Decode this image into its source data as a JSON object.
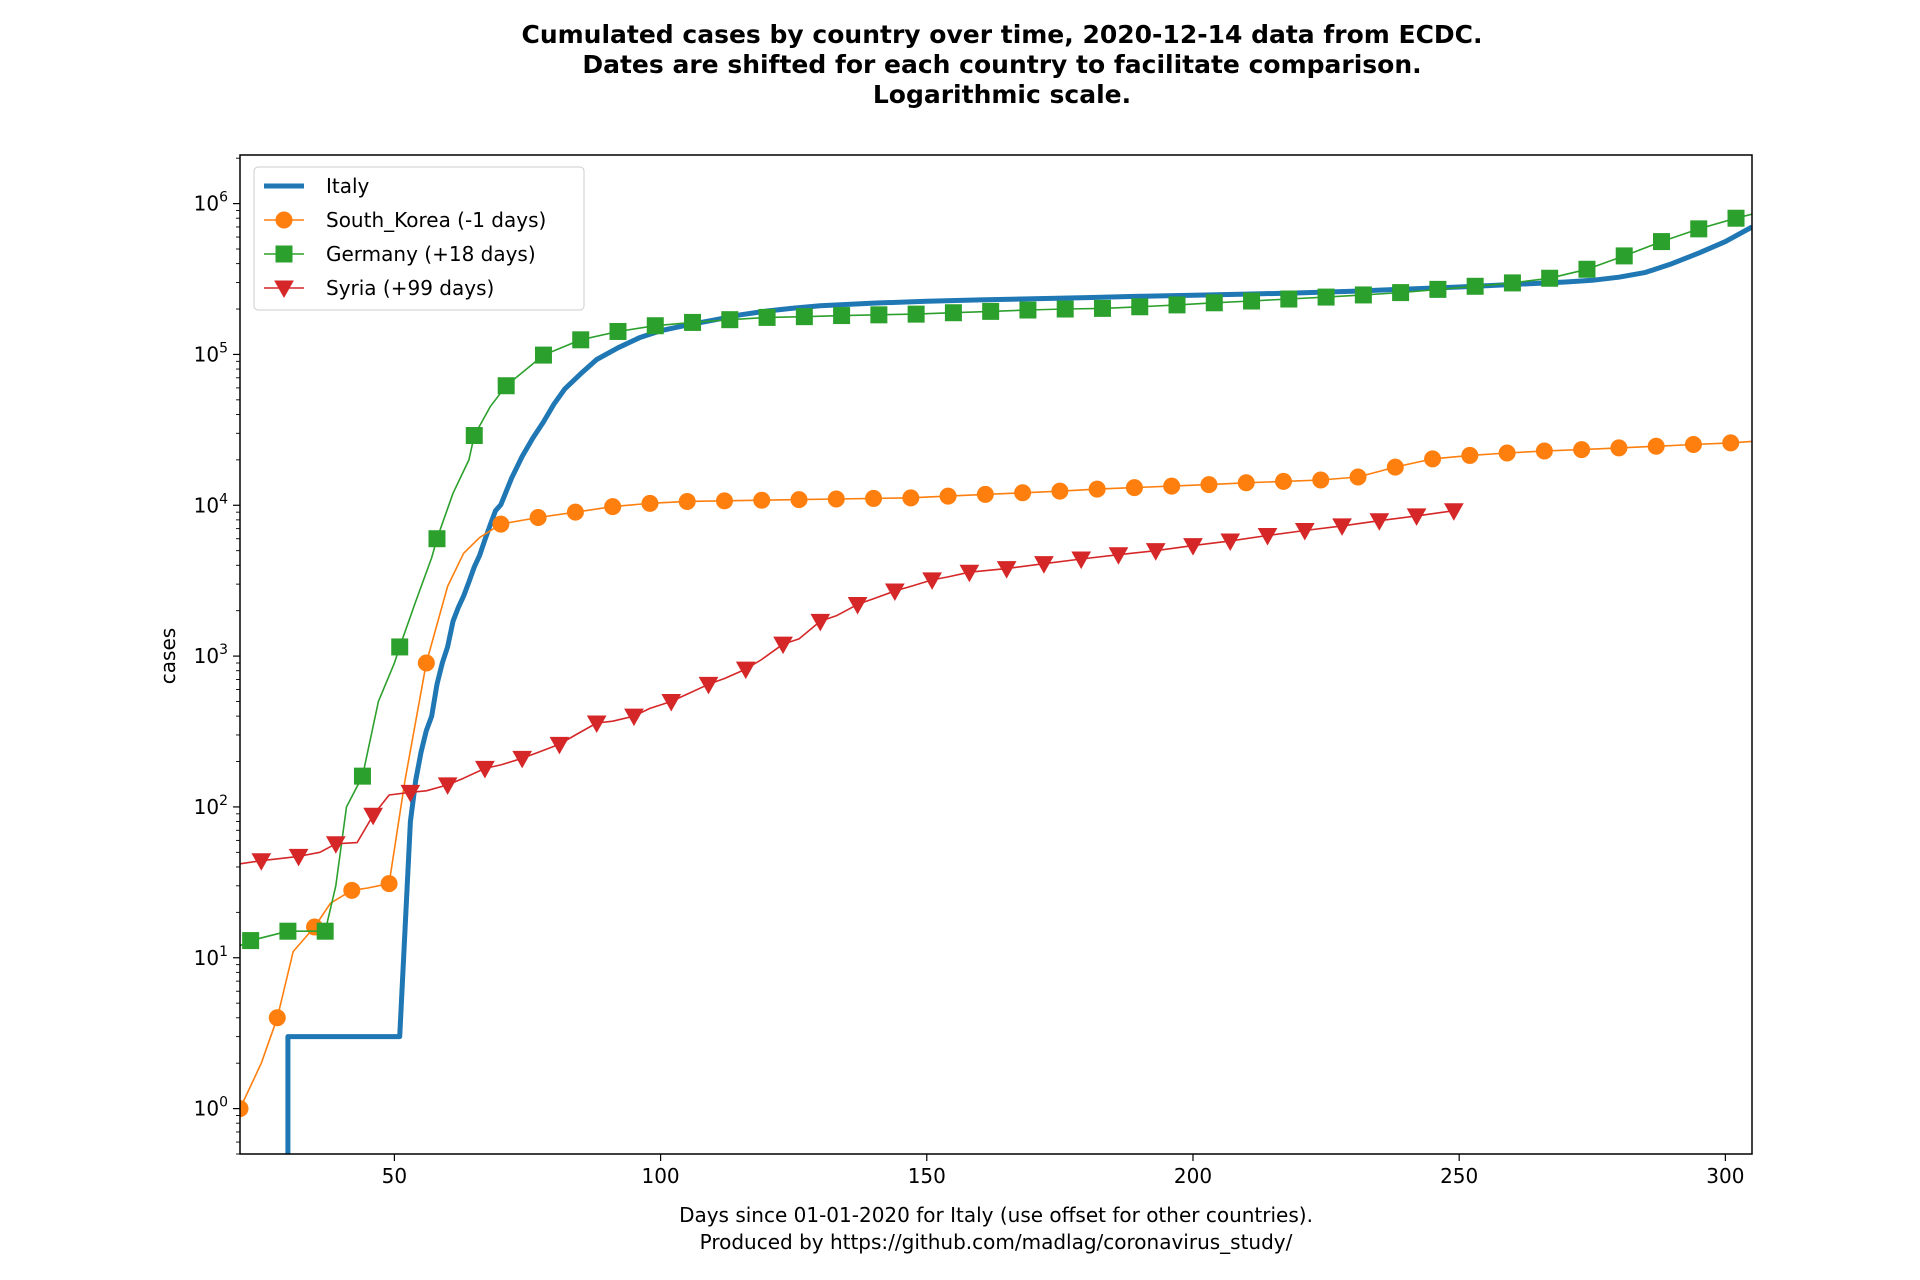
{
  "chart_data": {
    "type": "line",
    "title_lines": [
      "Cumulated cases by country over time, 2020-12-14 data from ECDC.",
      "Dates are shifted for each country to facilitate comparison.",
      "Logarithmic scale."
    ],
    "xlabel_lines": [
      "Days since 01-01-2020 for Italy (use offset for other countries).",
      "Produced by https://github.com/madlag/coronavirus_study/"
    ],
    "ylabel": "cases",
    "y_scale": "log",
    "xlim": [
      21,
      305
    ],
    "ylim": [
      0.5,
      2100000
    ],
    "x_ticks": [
      50,
      100,
      150,
      200,
      250,
      300
    ],
    "y_ticks": [
      {
        "value": 1,
        "base": "10",
        "exp": "0"
      },
      {
        "value": 10,
        "base": "10",
        "exp": "1"
      },
      {
        "value": 100,
        "base": "10",
        "exp": "2"
      },
      {
        "value": 1000,
        "base": "10",
        "exp": "3"
      },
      {
        "value": 10000,
        "base": "10",
        "exp": "4"
      },
      {
        "value": 100000,
        "base": "10",
        "exp": "5"
      },
      {
        "value": 1000000,
        "base": "10",
        "exp": "6"
      }
    ],
    "legend_position": "top-left",
    "grid": false,
    "series": [
      {
        "name": "Italy",
        "color": "#1f77b4",
        "marker": "none",
        "line_width": 5,
        "step": true,
        "x": [
          30,
          30,
          51,
          51,
          53,
          54,
          55,
          56,
          57,
          58,
          59,
          60,
          61,
          62,
          63,
          64,
          65,
          66,
          67,
          68,
          69,
          70,
          72,
          74,
          76,
          78,
          80,
          82,
          85,
          88,
          92,
          96,
          100,
          105,
          110,
          115,
          120,
          125,
          130,
          140,
          150,
          160,
          170,
          180,
          190,
          200,
          210,
          220,
          230,
          240,
          250,
          260,
          270,
          275,
          280,
          285,
          290,
          295,
          300,
          305
        ],
        "y": [
          0.5,
          3,
          3,
          3,
          80,
          150,
          230,
          320,
          400,
          650,
          900,
          1150,
          1700,
          2100,
          2500,
          3100,
          3900,
          4650,
          5900,
          7400,
          9200,
          10100,
          15100,
          21100,
          27900,
          35700,
          47000,
          59100,
          74400,
          92500,
          110600,
          128900,
          143600,
          156400,
          168900,
          183000,
          194000,
          203000,
          210000,
          219000,
          225000,
          230000,
          234000,
          238000,
          243000,
          247000,
          251000,
          256000,
          262000,
          271000,
          280000,
          291000,
          302000,
          310000,
          325000,
          350000,
          400000,
          470000,
          560000,
          700000
        ]
      },
      {
        "name": "South_Korea (-1 days)",
        "color": "#ff7f0e",
        "marker": "circle",
        "line_width": 1.6,
        "step": false,
        "x": [
          21,
          25,
          28,
          31,
          35,
          38,
          42,
          45,
          49,
          52,
          56,
          60,
          63,
          66,
          70,
          77,
          84,
          91,
          98,
          105,
          112,
          119,
          126,
          133,
          140,
          147,
          154,
          161,
          168,
          175,
          182,
          189,
          196,
          203,
          210,
          217,
          224,
          231,
          238,
          245,
          252,
          259,
          266,
          273,
          280,
          287,
          294,
          301,
          305
        ],
        "y": [
          1,
          2,
          4,
          11,
          16,
          23,
          28,
          29,
          31,
          150,
          900,
          2900,
          4800,
          6100,
          7500,
          8300,
          9000,
          9800,
          10300,
          10600,
          10700,
          10800,
          10900,
          11000,
          11100,
          11200,
          11500,
          11800,
          12100,
          12400,
          12800,
          13100,
          13400,
          13700,
          14100,
          14400,
          14700,
          15400,
          17900,
          20300,
          21400,
          22200,
          22900,
          23400,
          24000,
          24600,
          25300,
          25900,
          26500
        ],
        "marker_x": [
          21,
          28,
          35,
          42,
          49,
          56,
          70,
          77,
          84,
          91,
          98,
          105,
          112,
          119,
          126,
          133,
          140,
          147,
          154,
          161,
          168,
          175,
          182,
          189,
          196,
          203,
          210,
          217,
          224,
          231,
          238,
          245,
          252,
          259,
          266,
          273,
          280,
          287,
          294,
          301
        ],
        "marker_y": [
          1,
          4,
          16,
          28,
          31,
          900,
          7500,
          8300,
          9000,
          9800,
          10300,
          10600,
          10700,
          10800,
          10900,
          11000,
          11100,
          11200,
          11500,
          11800,
          12100,
          12400,
          12800,
          13100,
          13400,
          13700,
          14100,
          14400,
          14700,
          15400,
          17900,
          20300,
          21400,
          22200,
          22900,
          23400,
          24000,
          24600,
          25300,
          25900
        ]
      },
      {
        "name": "Germany (+18 days)",
        "color": "#2ca02c",
        "marker": "square",
        "line_width": 1.6,
        "step": false,
        "x": [
          21,
          23,
          30,
          37,
          39,
          41,
          44,
          47,
          50,
          51,
          54,
          57,
          58,
          61,
          64,
          65,
          68,
          71,
          78,
          85,
          92,
          99,
          106,
          113,
          120,
          127,
          134,
          141,
          148,
          155,
          162,
          169,
          176,
          183,
          190,
          197,
          204,
          211,
          218,
          225,
          232,
          239,
          246,
          253,
          260,
          267,
          274,
          281,
          288,
          295,
          302,
          305
        ],
        "y": [
          12,
          13,
          15,
          15,
          30,
          100,
          160,
          500,
          900,
          1150,
          2300,
          4500,
          6000,
          12000,
          20000,
          29000,
          45000,
          62000,
          99000,
          125000,
          142000,
          155000,
          163000,
          170000,
          176000,
          178000,
          181000,
          183000,
          185000,
          189000,
          193000,
          197000,
          200000,
          202000,
          207000,
          213000,
          220000,
          226000,
          233000,
          240000,
          248000,
          257000,
          270000,
          283000,
          298000,
          320000,
          367000,
          450000,
          560000,
          680000,
          800000,
          850000
        ],
        "marker_x": [
          23,
          30,
          37,
          44,
          51,
          58,
          65,
          71,
          78,
          85,
          92,
          99,
          106,
          113,
          120,
          127,
          134,
          141,
          148,
          155,
          162,
          169,
          176,
          183,
          190,
          197,
          204,
          211,
          218,
          225,
          232,
          239,
          246,
          253,
          260,
          267,
          274,
          281,
          288,
          295,
          302
        ],
        "marker_y": [
          13,
          15,
          15,
          160,
          1150,
          6000,
          29000,
          62000,
          99000,
          125000,
          142000,
          155000,
          163000,
          170000,
          176000,
          178000,
          181000,
          183000,
          185000,
          189000,
          193000,
          197000,
          200000,
          202000,
          207000,
          213000,
          220000,
          226000,
          233000,
          240000,
          248000,
          257000,
          270000,
          283000,
          298000,
          320000,
          367000,
          450000,
          560000,
          680000,
          800000
        ]
      },
      {
        "name": "Syria (+99 days)",
        "color": "#d62728",
        "marker": "triangle-down",
        "line_width": 1.6,
        "step": false,
        "x": [
          21,
          25,
          32,
          36,
          39,
          43,
          46,
          49,
          53,
          56,
          60,
          63,
          67,
          70,
          74,
          77,
          81,
          84,
          88,
          91,
          95,
          98,
          102,
          105,
          109,
          112,
          116,
          119,
          123,
          126,
          130,
          133,
          137,
          140,
          144,
          147,
          151,
          154,
          158,
          165,
          172,
          179,
          186,
          193,
          200,
          207,
          214,
          221,
          228,
          235,
          242,
          249
        ],
        "y": [
          42,
          44,
          47,
          50,
          57,
          58,
          88,
          120,
          125,
          128,
          140,
          155,
          180,
          190,
          210,
          230,
          260,
          300,
          360,
          370,
          400,
          450,
          500,
          560,
          650,
          710,
          820,
          950,
          1200,
          1300,
          1700,
          1850,
          2200,
          2400,
          2700,
          2900,
          3200,
          3350,
          3600,
          3800,
          4100,
          4400,
          4700,
          5000,
          5400,
          5800,
          6300,
          6800,
          7300,
          7900,
          8500,
          9200
        ],
        "marker_x": [
          25,
          32,
          39,
          46,
          53,
          60,
          67,
          74,
          81,
          88,
          95,
          102,
          109,
          116,
          123,
          130,
          137,
          144,
          151,
          158,
          165,
          172,
          179,
          186,
          193,
          200,
          207,
          214,
          221,
          228,
          235,
          242,
          249
        ],
        "marker_y": [
          44,
          47,
          57,
          88,
          125,
          140,
          180,
          210,
          260,
          360,
          400,
          500,
          650,
          820,
          1200,
          1700,
          2200,
          2700,
          3200,
          3600,
          3800,
          4100,
          4400,
          4700,
          5000,
          5400,
          5800,
          6300,
          6800,
          7300,
          7900,
          8500,
          9200
        ]
      }
    ]
  }
}
